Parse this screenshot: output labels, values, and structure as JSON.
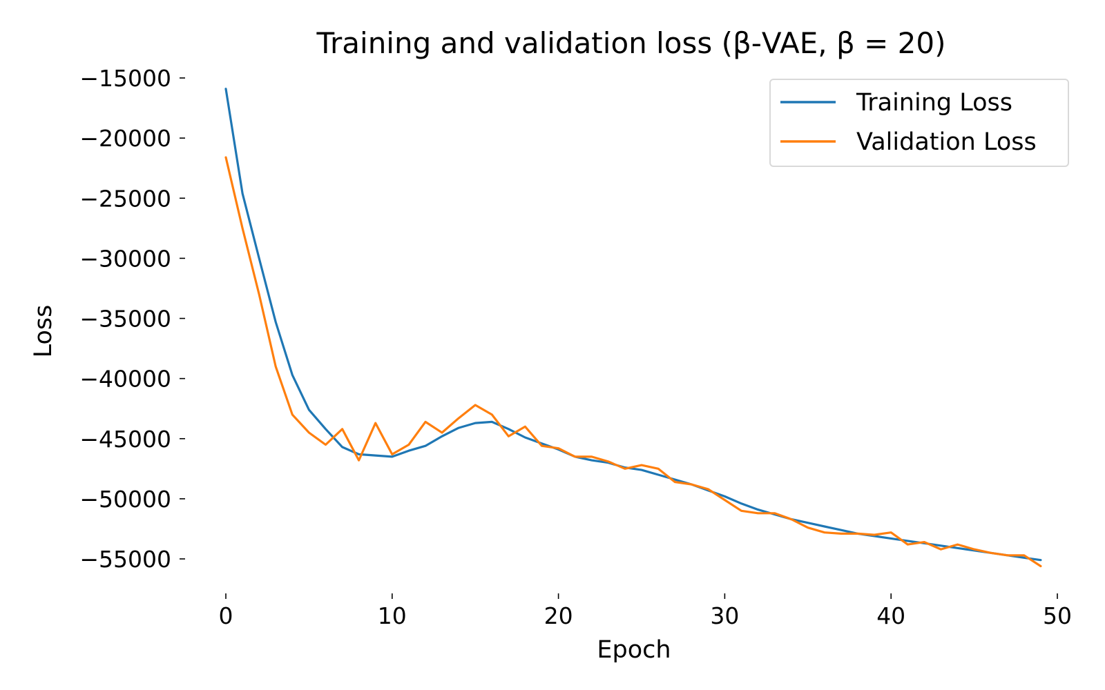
{
  "chart_data": {
    "type": "line",
    "title": "Training and validation loss (β-VAE, β = 20)",
    "xlabel": "Epoch",
    "ylabel": "Loss",
    "xlim": [
      -0.5,
      50
    ],
    "ylim": [
      -57500,
      -14000
    ],
    "xticks": [
      0,
      10,
      20,
      30,
      40,
      50
    ],
    "xtick_labels": [
      "0",
      "10",
      "20",
      "30",
      "40",
      "50"
    ],
    "yticks": [
      -15000,
      -20000,
      -25000,
      -30000,
      -35000,
      -40000,
      -45000,
      -50000,
      -55000
    ],
    "ytick_labels": [
      "−15000",
      "−20000",
      "−25000",
      "−30000",
      "−35000",
      "−40000",
      "−45000",
      "−50000",
      "−55000"
    ],
    "grid": false,
    "legend_position": "top-right",
    "x": [
      0,
      1,
      2,
      3,
      4,
      5,
      6,
      7,
      8,
      9,
      10,
      11,
      12,
      13,
      14,
      15,
      16,
      17,
      18,
      19,
      20,
      21,
      22,
      23,
      24,
      25,
      26,
      27,
      28,
      29,
      30,
      31,
      32,
      33,
      34,
      35,
      36,
      37,
      38,
      39,
      40,
      41,
      42,
      43,
      44,
      45,
      46,
      47,
      48,
      49
    ],
    "series": [
      {
        "name": "Training Loss",
        "color": "#1f77b4",
        "values": [
          -15900,
          -24600,
          -30000,
          -35300,
          -39700,
          -42600,
          -44200,
          -45700,
          -46300,
          -46400,
          -46500,
          -46000,
          -45600,
          -44800,
          -44100,
          -43700,
          -43600,
          -44200,
          -44900,
          -45400,
          -45900,
          -46500,
          -46800,
          -47000,
          -47400,
          -47600,
          -48000,
          -48400,
          -48800,
          -49300,
          -49800,
          -50400,
          -50900,
          -51300,
          -51700,
          -52000,
          -52300,
          -52600,
          -52900,
          -53100,
          -53300,
          -53500,
          -53700,
          -53900,
          -54100,
          -54300,
          -54500,
          -54700,
          -54900,
          -55100
        ]
      },
      {
        "name": "Validation Loss",
        "color": "#ff7f0e",
        "values": [
          -21600,
          -27500,
          -33000,
          -39000,
          -43000,
          -44500,
          -45500,
          -44200,
          -46800,
          -43700,
          -46300,
          -45500,
          -43600,
          -44500,
          -43300,
          -42200,
          -43000,
          -44800,
          -44000,
          -45600,
          -45800,
          -46500,
          -46500,
          -46900,
          -47500,
          -47200,
          -47500,
          -48600,
          -48800,
          -49200,
          -50100,
          -51000,
          -51200,
          -51200,
          -51700,
          -52400,
          -52800,
          -52900,
          -52900,
          -53000,
          -52800,
          -53800,
          -53600,
          -54200,
          -53800,
          -54200,
          -54500,
          -54700,
          -54700,
          -55600
        ]
      }
    ]
  }
}
